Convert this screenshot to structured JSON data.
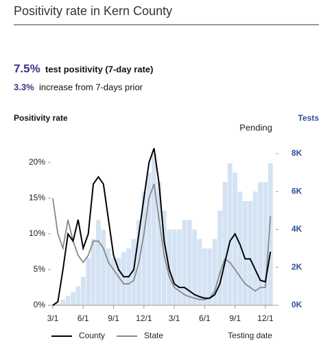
{
  "header": {
    "title": "Positivity rate in Kern County"
  },
  "summary": {
    "rate": {
      "value": 7.5,
      "label": "7.5%"
    },
    "rate_text": "test positivity (7-day rate)",
    "change": {
      "value": 3.3,
      "label": "3.3%"
    },
    "change_text": "increase from 7-days prior"
  },
  "chart_data": {
    "type": "line",
    "ylabel": "Positivity rate",
    "y2label": "Tests",
    "xlabel": "Testing date",
    "annotation": "Pending",
    "categories": [
      "3/1",
      null,
      null,
      null,
      null,
      null,
      "6/1",
      null,
      null,
      null,
      null,
      null,
      "9/1",
      null,
      null,
      null,
      null,
      null,
      "12/1",
      null,
      null,
      null,
      null,
      null,
      "3/1",
      null,
      null,
      null,
      null,
      null,
      "6/1",
      null,
      null,
      null,
      null,
      null,
      "9/1",
      null,
      null,
      null,
      null,
      null,
      "12/1",
      null
    ],
    "series": [
      {
        "name": "County",
        "color": "#000000",
        "values": [
          0,
          0.5,
          5,
          10,
          9,
          12,
          8,
          10,
          17,
          18,
          17,
          12,
          7,
          5,
          4,
          4,
          5,
          10,
          15,
          20,
          22,
          17,
          9,
          5,
          3,
          2.5,
          2.5,
          2,
          1.5,
          1.2,
          1,
          1,
          1.5,
          3,
          6,
          9,
          10,
          8.5,
          6.5,
          6.5,
          5,
          3.5,
          3.3,
          7.5
        ]
      },
      {
        "name": "State",
        "color": "#888888",
        "values": [
          15,
          10,
          8,
          12,
          9,
          7,
          6,
          7,
          9,
          9,
          8,
          6,
          5,
          4,
          3,
          3,
          3.5,
          6,
          10,
          15,
          17,
          12,
          7,
          4,
          2.5,
          2,
          1.5,
          1.2,
          1,
          0.8,
          0.8,
          1,
          2,
          4.5,
          6.5,
          6,
          5,
          4,
          3,
          2.5,
          2,
          2.5,
          2.5,
          12.5
        ]
      },
      {
        "name": "Tests",
        "color": "#d3e3f3",
        "axis": "y2",
        "type": "bar",
        "values": [
          0,
          100,
          300,
          500,
          700,
          1000,
          1500,
          2500,
          3500,
          4500,
          4000,
          3000,
          2500,
          2500,
          2800,
          3000,
          3500,
          4500,
          6000,
          7000,
          8000,
          6500,
          5000,
          4000,
          4000,
          4000,
          4500,
          4500,
          4000,
          3500,
          3000,
          3000,
          3500,
          5000,
          6500,
          7500,
          7000,
          6000,
          5500,
          5500,
          6000,
          6500,
          6500,
          7500
        ]
      }
    ],
    "ylim": [
      0,
      22
    ],
    "yticks": [
      {
        "value": 0,
        "label": "0%"
      },
      {
        "value": 5,
        "label": "5%"
      },
      {
        "value": 10,
        "label": "10%"
      },
      {
        "value": 15,
        "label": "15%"
      },
      {
        "value": 20,
        "label": "20%"
      }
    ],
    "y2lim": [
      0,
      8000
    ],
    "y2ticks": [
      {
        "value": 0,
        "label": "0K"
      },
      {
        "value": 2000,
        "label": "2K"
      },
      {
        "value": 4000,
        "label": "4K"
      },
      {
        "value": 6000,
        "label": "6K"
      },
      {
        "value": 8000,
        "label": "8K"
      }
    ]
  }
}
